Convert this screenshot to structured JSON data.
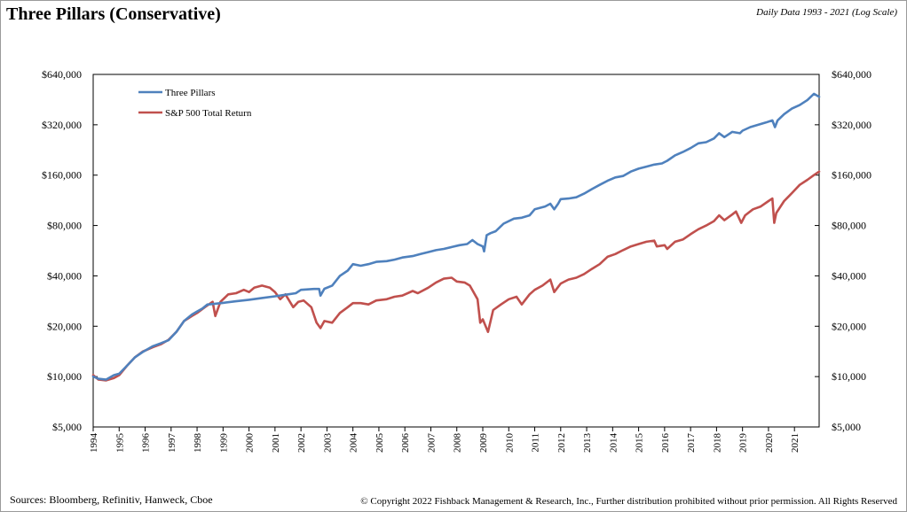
{
  "header": {
    "title": "Three Pillars (Conservative)",
    "subtitle": "Daily Data 1993 - 2021 (Log Scale)"
  },
  "footer": {
    "sources": "Sources: Bloomberg, Refinitiv, Hanweck, Cboe",
    "copyright": "© Copyright 2022 Fishback Management & Research, Inc., Further distribution prohibited without prior permission. All Rights Reserved"
  },
  "chart_data": {
    "type": "line",
    "y_scale": "log",
    "ylim": [
      5000,
      640000
    ],
    "xlim": [
      1994.0,
      2021.95
    ],
    "y_ticks": [
      5000,
      10000,
      20000,
      40000,
      80000,
      160000,
      320000,
      640000
    ],
    "y_tick_labels": [
      "$5,000",
      "$10,000",
      "$20,000",
      "$40,000",
      "$80,000",
      "$160,000",
      "$320,000",
      "$640,000"
    ],
    "x_ticks": [
      "1994",
      "1995",
      "1996",
      "1997",
      "1998",
      "1999",
      "2000",
      "2001",
      "2002",
      "2003",
      "2004",
      "2005",
      "2006",
      "2007",
      "2008",
      "2009",
      "2010",
      "2011",
      "2012",
      "2013",
      "2014",
      "2015",
      "2016",
      "2017",
      "2018",
      "2019",
      "2020",
      "2021"
    ],
    "dual_y_axis": true,
    "grid": false,
    "legend_position": "top-left",
    "series": [
      {
        "name": "Three Pillars",
        "color": "#4f81bd",
        "x": [
          1994.0,
          1994.2,
          1994.5,
          1994.8,
          1995.0,
          1995.3,
          1995.6,
          1995.9,
          1996.3,
          1996.6,
          1996.9,
          1997.2,
          1997.5,
          1997.8,
          1998.0,
          1998.2,
          1998.4,
          1998.45,
          1999.0,
          1999.5,
          2000.0,
          2000.5,
          2001.0,
          2001.5,
          2001.8,
          2002.0,
          2002.5,
          2002.7,
          2002.75,
          2002.9,
          2003.2,
          2003.5,
          2003.8,
          2004.0,
          2004.3,
          2004.6,
          2004.9,
          2005.3,
          2005.6,
          2005.9,
          2006.3,
          2006.6,
          2006.9,
          2007.2,
          2007.5,
          2007.8,
          2008.1,
          2008.4,
          2008.6,
          2008.8,
          2009.0,
          2009.05,
          2009.15,
          2009.3,
          2009.5,
          2009.8,
          2010.2,
          2010.5,
          2010.8,
          2011.0,
          2011.4,
          2011.6,
          2011.75,
          2011.9,
          2012.0,
          2012.3,
          2012.6,
          2012.9,
          2013.2,
          2013.5,
          2013.8,
          2014.1,
          2014.4,
          2014.7,
          2015.0,
          2015.3,
          2015.6,
          2015.9,
          2016.1,
          2016.4,
          2016.7,
          2017.0,
          2017.3,
          2017.6,
          2017.9,
          2018.1,
          2018.3,
          2018.6,
          2018.9,
          2019.0,
          2019.3,
          2019.6,
          2019.9,
          2020.15,
          2020.25,
          2020.35,
          2020.6,
          2020.9,
          2021.2,
          2021.5,
          2021.75,
          2021.95
        ],
        "values": [
          10000,
          9700,
          9600,
          10200,
          10400,
          11600,
          13000,
          14000,
          15200,
          15800,
          16500,
          18500,
          21500,
          23500,
          24500,
          25500,
          27000,
          27000,
          27600,
          28200,
          28800,
          29500,
          30200,
          31000,
          31500,
          33000,
          33400,
          33400,
          30500,
          33500,
          35000,
          40000,
          43000,
          47000,
          46000,
          47000,
          48500,
          49000,
          50000,
          51500,
          52500,
          54000,
          55500,
          57000,
          58000,
          59500,
          61000,
          62000,
          65500,
          62000,
          60000,
          56000,
          70000,
          72000,
          74000,
          82000,
          88000,
          89000,
          92000,
          100000,
          104000,
          108000,
          100000,
          108000,
          115000,
          116000,
          118000,
          124000,
          132000,
          140000,
          148000,
          155000,
          158000,
          168000,
          175000,
          180000,
          185000,
          188000,
          195000,
          210000,
          220000,
          232000,
          248000,
          252000,
          265000,
          285000,
          270000,
          290000,
          285000,
          295000,
          310000,
          320000,
          330000,
          340000,
          310000,
          340000,
          370000,
          400000,
          420000,
          450000,
          490000,
          470000
        ]
      },
      {
        "name": "S&P 500 Total Return",
        "color": "#c0504d",
        "x": [
          1994.0,
          1994.2,
          1994.5,
          1994.8,
          1995.0,
          1995.3,
          1995.6,
          1995.9,
          1996.3,
          1996.6,
          1996.9,
          1997.2,
          1997.5,
          1997.8,
          1998.0,
          1998.3,
          1998.6,
          1998.7,
          1998.9,
          1999.2,
          1999.5,
          1999.8,
          2000.0,
          2000.2,
          2000.5,
          2000.8,
          2001.0,
          2001.2,
          2001.4,
          2001.7,
          2001.9,
          2002.1,
          2002.4,
          2002.6,
          2002.75,
          2002.9,
          2003.2,
          2003.5,
          2003.8,
          2004.0,
          2004.3,
          2004.6,
          2004.9,
          2005.3,
          2005.6,
          2005.9,
          2006.3,
          2006.5,
          2006.9,
          2007.2,
          2007.5,
          2007.8,
          2008.0,
          2008.3,
          2008.5,
          2008.8,
          2008.9,
          2009.0,
          2009.2,
          2009.4,
          2009.7,
          2010.0,
          2010.3,
          2010.5,
          2010.8,
          2011.0,
          2011.3,
          2011.6,
          2011.75,
          2012.0,
          2012.3,
          2012.6,
          2012.9,
          2013.2,
          2013.5,
          2013.8,
          2014.1,
          2014.4,
          2014.7,
          2015.0,
          2015.3,
          2015.6,
          2015.7,
          2016.0,
          2016.1,
          2016.4,
          2016.7,
          2017.0,
          2017.3,
          2017.6,
          2017.9,
          2018.1,
          2018.3,
          2018.6,
          2018.75,
          2018.95,
          2019.1,
          2019.4,
          2019.7,
          2020.0,
          2020.15,
          2020.22,
          2020.3,
          2020.6,
          2020.9,
          2021.2,
          2021.5,
          2021.75,
          2021.95
        ],
        "values": [
          10200,
          9600,
          9500,
          9800,
          10200,
          11600,
          13000,
          14100,
          15000,
          15600,
          16600,
          18500,
          21500,
          23000,
          24000,
          26000,
          28000,
          23000,
          28000,
          31000,
          31500,
          33000,
          32000,
          34000,
          35000,
          34000,
          32000,
          29000,
          31000,
          26000,
          28000,
          28500,
          26000,
          21000,
          19500,
          21500,
          21000,
          24000,
          26000,
          27500,
          27500,
          27000,
          28500,
          29000,
          30000,
          30500,
          32500,
          31500,
          34000,
          36500,
          38500,
          39000,
          37000,
          36500,
          35000,
          29000,
          21000,
          22000,
          18500,
          25000,
          27000,
          29000,
          30000,
          27000,
          31000,
          33000,
          35000,
          38000,
          32000,
          36000,
          38000,
          39000,
          41000,
          44000,
          47000,
          52000,
          54000,
          57000,
          60000,
          62000,
          64000,
          65000,
          60000,
          61000,
          58000,
          64000,
          66000,
          71000,
          76000,
          80000,
          85000,
          92000,
          86000,
          93000,
          97000,
          83000,
          92000,
          100000,
          104000,
          112000,
          116000,
          83000,
          95000,
          112000,
          125000,
          140000,
          150000,
          160000,
          168000
        ]
      }
    ]
  }
}
